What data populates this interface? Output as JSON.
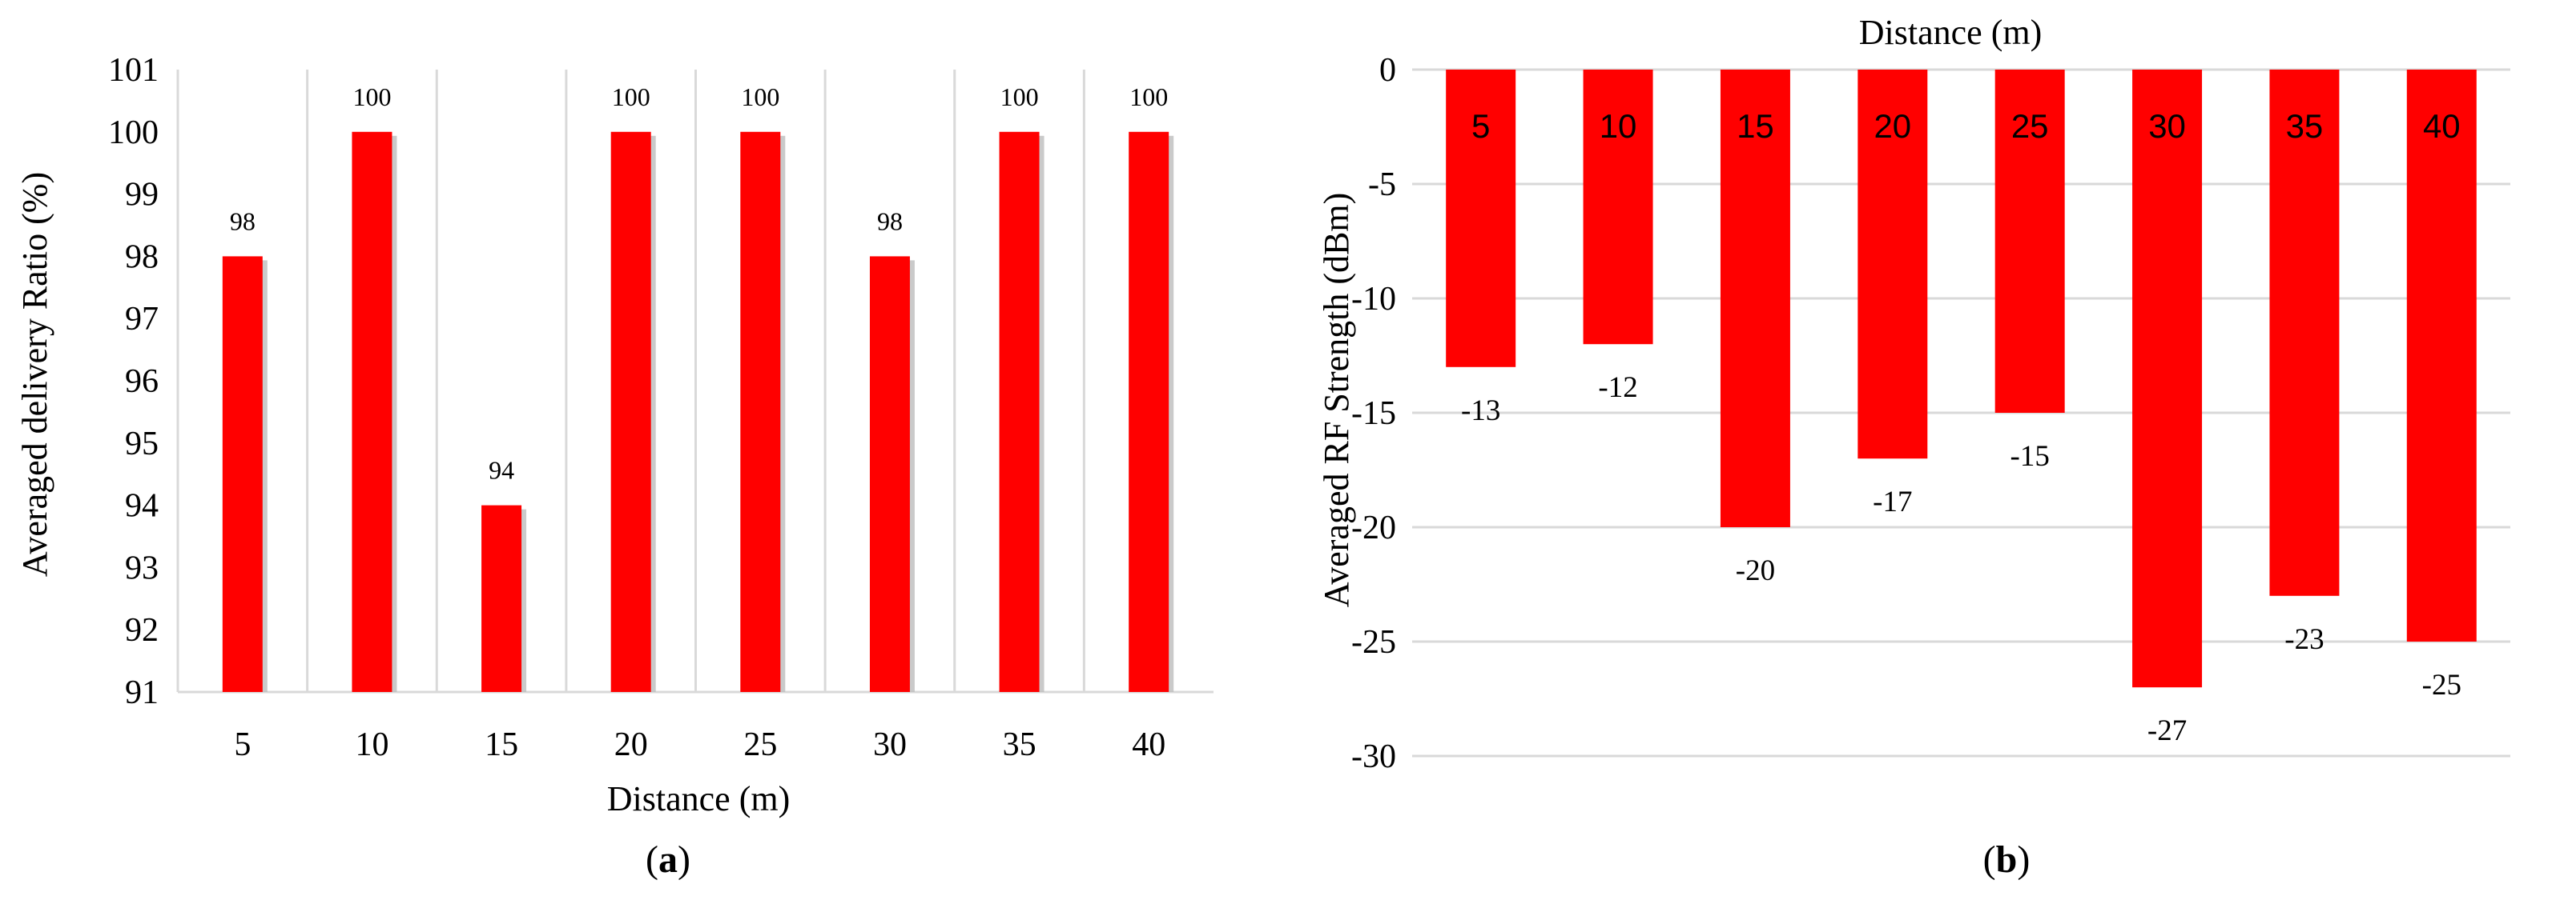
{
  "colors": {
    "bar": "#ff0000",
    "shadow": "#bdbdbd",
    "grid": "#d9d9d9",
    "text": "#000000"
  },
  "panel_labels": {
    "a": {
      "open": "(",
      "letter": "a",
      "close": ")"
    },
    "b": {
      "open": "(",
      "letter": "b",
      "close": ")"
    }
  },
  "chart_data": [
    {
      "type": "bar",
      "categories": [
        "5",
        "10",
        "15",
        "20",
        "25",
        "30",
        "35",
        "40"
      ],
      "values": [
        98,
        100,
        94,
        100,
        100,
        98,
        100,
        100
      ],
      "data_labels": [
        "98",
        "100",
        "94",
        "100",
        "100",
        "98",
        "100",
        "100"
      ],
      "xlabel": "Distance (m)",
      "ylabel": "Averaged delivery Ratio (%)",
      "ylim": [
        91,
        101
      ],
      "yticks": [
        "91",
        "92",
        "93",
        "94",
        "95",
        "96",
        "97",
        "98",
        "99",
        "100",
        "101"
      ],
      "grid": "vertical",
      "legend": "none"
    },
    {
      "type": "bar",
      "categories": [
        "5",
        "10",
        "15",
        "20",
        "25",
        "30",
        "35",
        "40"
      ],
      "values": [
        -13,
        -12,
        -20,
        -17,
        -15,
        -27,
        -23,
        -25
      ],
      "data_labels": [
        "-13",
        "-12",
        "-20",
        "-17",
        "-15",
        "-27",
        "-23",
        "-25"
      ],
      "xlabel": "Distance (m)",
      "ylabel": "Averaged RF Strength (dBm)",
      "ylim": [
        -30,
        0
      ],
      "yticks": [
        "0",
        "-5",
        "-10",
        "-15",
        "-20",
        "-25",
        "-30"
      ],
      "grid": "horizontal",
      "legend": "none"
    }
  ]
}
